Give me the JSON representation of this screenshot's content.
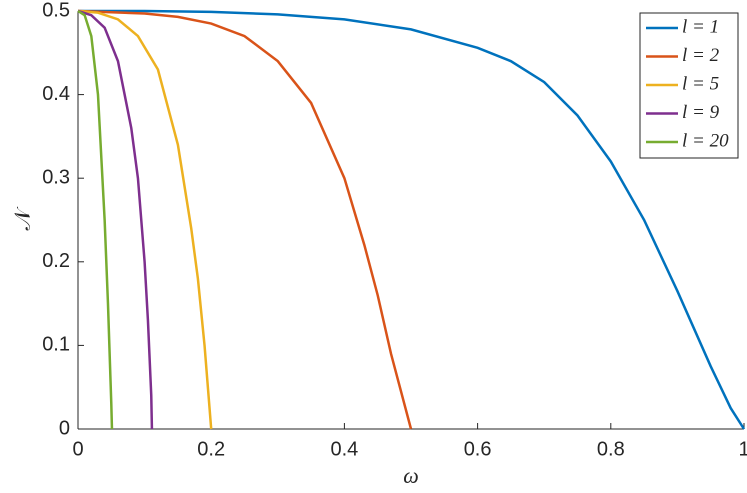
{
  "chart_data": {
    "type": "line",
    "x_label": "ω",
    "y_label": "𝒩",
    "xlim": [
      0,
      1
    ],
    "ylim": [
      0,
      0.5
    ],
    "xticks": [
      0,
      0.2,
      0.4,
      0.6,
      0.8,
      1
    ],
    "yticks": [
      0,
      0.1,
      0.2,
      0.3,
      0.4,
      0.5
    ],
    "legend": "upper right",
    "series": [
      {
        "name": "l = 1",
        "color": "#0072bd",
        "x": [
          0,
          0.1,
          0.2,
          0.3,
          0.4,
          0.5,
          0.6,
          0.65,
          0.7,
          0.75,
          0.8,
          0.85,
          0.9,
          0.95,
          0.98,
          1.0
        ],
        "values": [
          0.5,
          0.5,
          0.499,
          0.496,
          0.49,
          0.478,
          0.456,
          0.44,
          0.415,
          0.375,
          0.32,
          0.25,
          0.165,
          0.075,
          0.025,
          0
        ]
      },
      {
        "name": "l = 2",
        "color": "#d95319",
        "x": [
          0,
          0.1,
          0.15,
          0.2,
          0.25,
          0.3,
          0.35,
          0.4,
          0.43,
          0.45,
          0.47,
          0.49,
          0.5
        ],
        "values": [
          0.5,
          0.497,
          0.493,
          0.485,
          0.47,
          0.44,
          0.39,
          0.3,
          0.22,
          0.16,
          0.09,
          0.03,
          0
        ]
      },
      {
        "name": "l = 5",
        "color": "#edb120",
        "x": [
          0,
          0.03,
          0.06,
          0.09,
          0.12,
          0.15,
          0.17,
          0.18,
          0.19,
          0.195,
          0.2
        ],
        "values": [
          0.5,
          0.498,
          0.49,
          0.47,
          0.43,
          0.34,
          0.24,
          0.18,
          0.1,
          0.05,
          0
        ]
      },
      {
        "name": "l = 9",
        "color": "#7e2f8e",
        "x": [
          0,
          0.02,
          0.04,
          0.06,
          0.08,
          0.09,
          0.1,
          0.105,
          0.11,
          0.111
        ],
        "values": [
          0.5,
          0.495,
          0.48,
          0.44,
          0.36,
          0.3,
          0.2,
          0.13,
          0.04,
          0
        ]
      },
      {
        "name": "l = 20",
        "color": "#77ac30",
        "x": [
          0,
          0.01,
          0.02,
          0.03,
          0.04,
          0.045,
          0.05,
          0.051
        ],
        "values": [
          0.5,
          0.495,
          0.47,
          0.4,
          0.25,
          0.15,
          0.03,
          0
        ]
      }
    ]
  }
}
